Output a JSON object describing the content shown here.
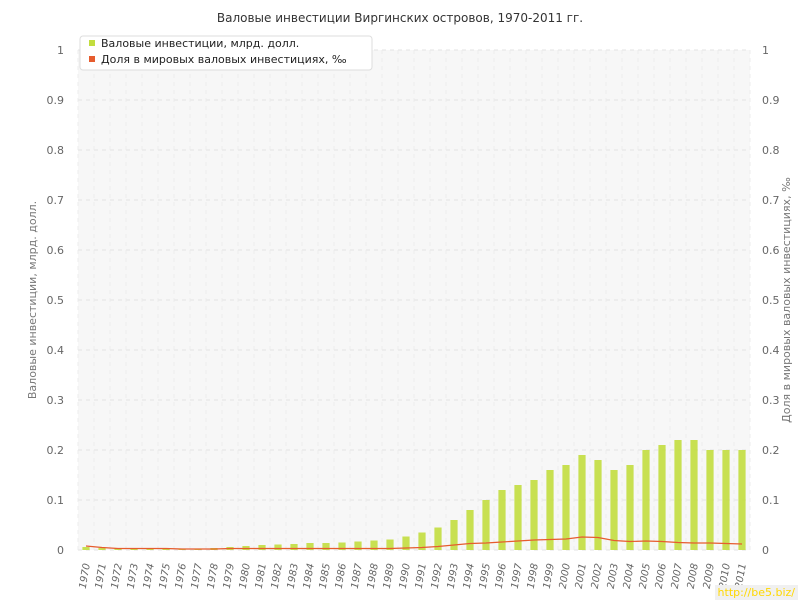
{
  "watermark": "http://be5.biz/",
  "chart_data": {
    "type": "bar",
    "title": "Валовые инвестиции Виргинских островов, 1970-2011 гг.",
    "ylabel_left": "Валовые инвестиции, млрд. долл.",
    "ylabel_right": "Доля в мировых валовых инвестициях, ‰",
    "ylim": [
      0,
      1
    ],
    "yticks": [
      "0",
      "0.1",
      "0.2",
      "0.3",
      "0.4",
      "0.5",
      "0.6",
      "0.7",
      "0.8",
      "0.9",
      "1"
    ],
    "grid": true,
    "legend_position": "top-left",
    "categories": [
      "1970",
      "1971",
      "1972",
      "1973",
      "1974",
      "1975",
      "1976",
      "1977",
      "1978",
      "1979",
      "1980",
      "1981",
      "1982",
      "1983",
      "1984",
      "1985",
      "1986",
      "1987",
      "1988",
      "1989",
      "1990",
      "1991",
      "1992",
      "1993",
      "1994",
      "1995",
      "1996",
      "1997",
      "1998",
      "1999",
      "2000",
      "2001",
      "2002",
      "2003",
      "2004",
      "2005",
      "2006",
      "2007",
      "2008",
      "2009",
      "2010",
      "2011"
    ],
    "series": [
      {
        "name": "Валовые инвестиции, млрд. долл.",
        "type": "bar",
        "color": "#c2dd3e",
        "values": [
          0.006,
          0.004,
          0.003,
          0.003,
          0.004,
          0.004,
          0.003,
          0.003,
          0.004,
          0.006,
          0.008,
          0.01,
          0.011,
          0.012,
          0.014,
          0.014,
          0.015,
          0.017,
          0.019,
          0.021,
          0.027,
          0.035,
          0.045,
          0.06,
          0.08,
          0.1,
          0.12,
          0.13,
          0.14,
          0.16,
          0.17,
          0.19,
          0.18,
          0.16,
          0.17,
          0.2,
          0.21,
          0.22,
          0.22,
          0.2,
          0.2,
          0.2
        ]
      },
      {
        "name": "Доля в мировых валовых инвестициях, ‰",
        "type": "line",
        "color": "#e65c2e",
        "values": [
          0.008,
          0.005,
          0.003,
          0.003,
          0.003,
          0.003,
          0.002,
          0.002,
          0.002,
          0.003,
          0.003,
          0.003,
          0.003,
          0.003,
          0.003,
          0.003,
          0.003,
          0.003,
          0.003,
          0.003,
          0.004,
          0.005,
          0.007,
          0.01,
          0.013,
          0.014,
          0.016,
          0.018,
          0.02,
          0.021,
          0.022,
          0.026,
          0.025,
          0.019,
          0.017,
          0.018,
          0.017,
          0.015,
          0.014,
          0.014,
          0.013,
          0.012
        ]
      }
    ]
  }
}
